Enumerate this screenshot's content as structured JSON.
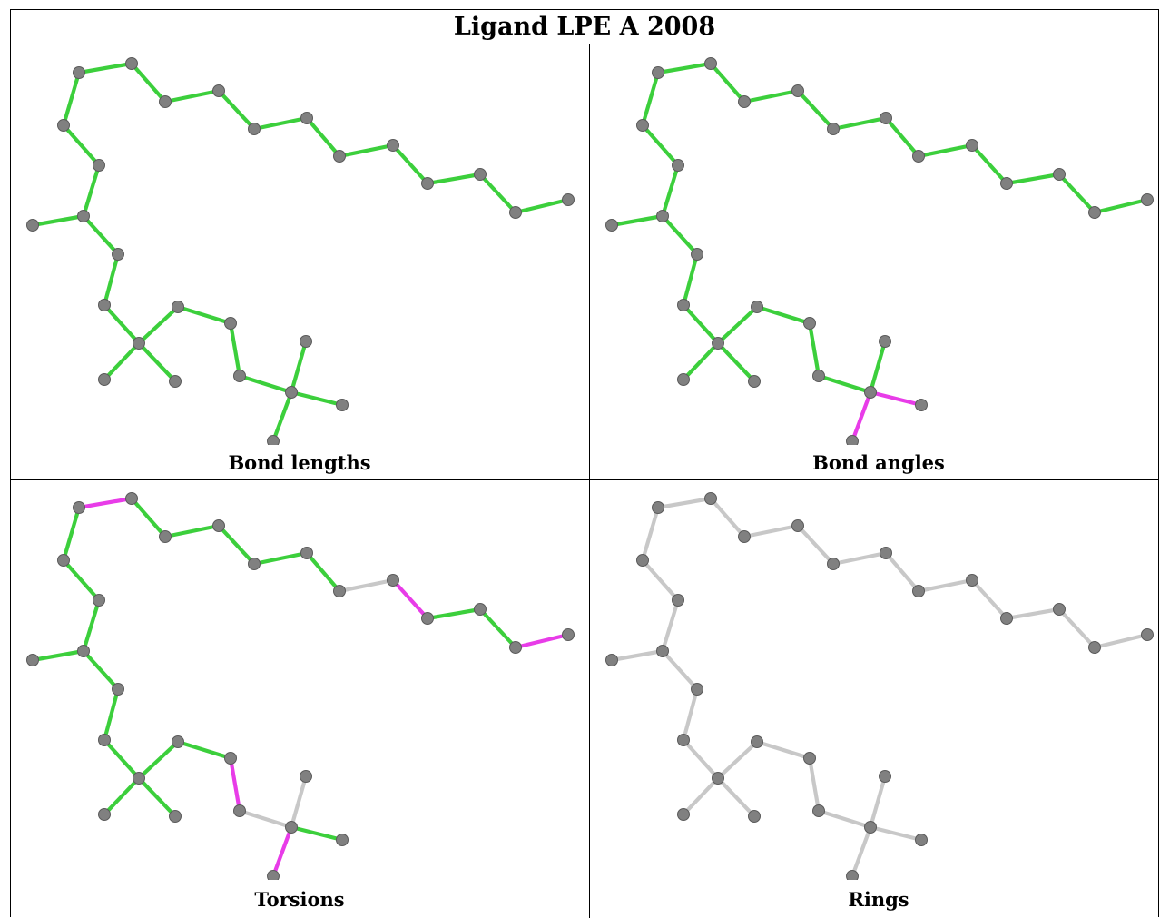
{
  "title": "Ligand LPE A 2008",
  "colors": {
    "ok": "#3ccf3c",
    "outlier": "#e83ce8",
    "neutral": "#c8c8c8",
    "atom": "#808080"
  },
  "panels": [
    {
      "caption": "Bond lengths",
      "bonds": [
        "g",
        "g",
        "g",
        "g",
        "g",
        "g",
        "g",
        "g",
        "g",
        "g",
        "g",
        "g",
        "g",
        "g",
        "g",
        "g",
        "g",
        "g",
        "g",
        "g",
        "g",
        "g",
        "g",
        "g",
        "g",
        "g",
        "g",
        "g",
        "g",
        "g",
        "g"
      ]
    },
    {
      "caption": "Bond angles",
      "bonds": [
        "g",
        "g",
        "g",
        "g",
        "g",
        "g",
        "g",
        "g",
        "g",
        "g",
        "g",
        "g",
        "g",
        "g",
        "g",
        "g",
        "g",
        "g",
        "g",
        "g",
        "g",
        "g",
        "g",
        "g",
        "g",
        "m",
        "m",
        "g",
        "g",
        "g",
        "g"
      ]
    },
    {
      "caption": "Torsions",
      "bonds": [
        "m",
        "g",
        "g",
        "g",
        "g",
        "g",
        "g",
        "g",
        "g",
        "g",
        "g",
        "g",
        "g",
        "g",
        "g",
        "x",
        "m",
        "g",
        "g",
        "m",
        "g",
        "g",
        "m",
        "x",
        "x",
        "g",
        "m",
        "x",
        "x",
        "x",
        "x"
      ]
    },
    {
      "caption": "Rings",
      "bonds": [
        "x",
        "x",
        "x",
        "x",
        "x",
        "x",
        "x",
        "x",
        "x",
        "x",
        "x",
        "x",
        "x",
        "x",
        "x",
        "x",
        "x",
        "x",
        "x",
        "x",
        "x",
        "x",
        "x",
        "x",
        "x",
        "x",
        "x",
        "x",
        "x",
        "x",
        "x"
      ]
    }
  ]
}
